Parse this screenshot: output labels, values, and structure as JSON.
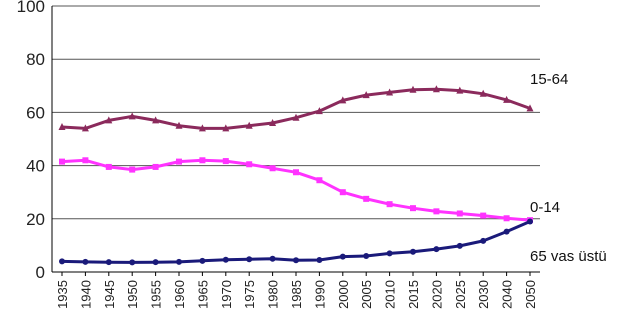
{
  "chart_data": {
    "type": "line",
    "title": "",
    "xlabel": "",
    "ylabel": "",
    "ylim": [
      0,
      100
    ],
    "yticks": [
      0,
      20,
      40,
      60,
      80,
      100
    ],
    "grid": "horizontal",
    "legend": "inline-right",
    "x": [
      "1935",
      "1940",
      "1945",
      "1950",
      "1955",
      "1960",
      "1965",
      "1970",
      "1975",
      "1980",
      "1985",
      "1990",
      "2000",
      "2005",
      "2010",
      "2015",
      "2020",
      "2025",
      "2030",
      "2040",
      "2050"
    ],
    "series": [
      {
        "name": "15-64",
        "color": "#8b2a5c",
        "marker": "triangle",
        "values": [
          54.5,
          54,
          57,
          58.5,
          57,
          55,
          54,
          54,
          55,
          56,
          58,
          60.5,
          64.5,
          66.5,
          67.5,
          68.5,
          68.7,
          68.2,
          67,
          64.7,
          61.5
        ]
      },
      {
        "name": "0-14",
        "color": "#ff33ff",
        "marker": "square",
        "values": [
          41.5,
          42,
          39.5,
          38.5,
          39.5,
          41.5,
          42,
          41.7,
          40.5,
          39,
          37.5,
          34.5,
          30,
          27.5,
          25.5,
          24,
          22.8,
          22,
          21.2,
          20.2,
          19.5
        ]
      },
      {
        "name": "65 vas üstü",
        "color": "#1a1a7a",
        "marker": "circle",
        "values": [
          4,
          3.8,
          3.7,
          3.6,
          3.7,
          3.8,
          4.2,
          4.6,
          4.8,
          5,
          4.4,
          4.5,
          5.8,
          6,
          7,
          7.6,
          8.6,
          9.8,
          11.7,
          15.2,
          19
        ]
      }
    ]
  }
}
